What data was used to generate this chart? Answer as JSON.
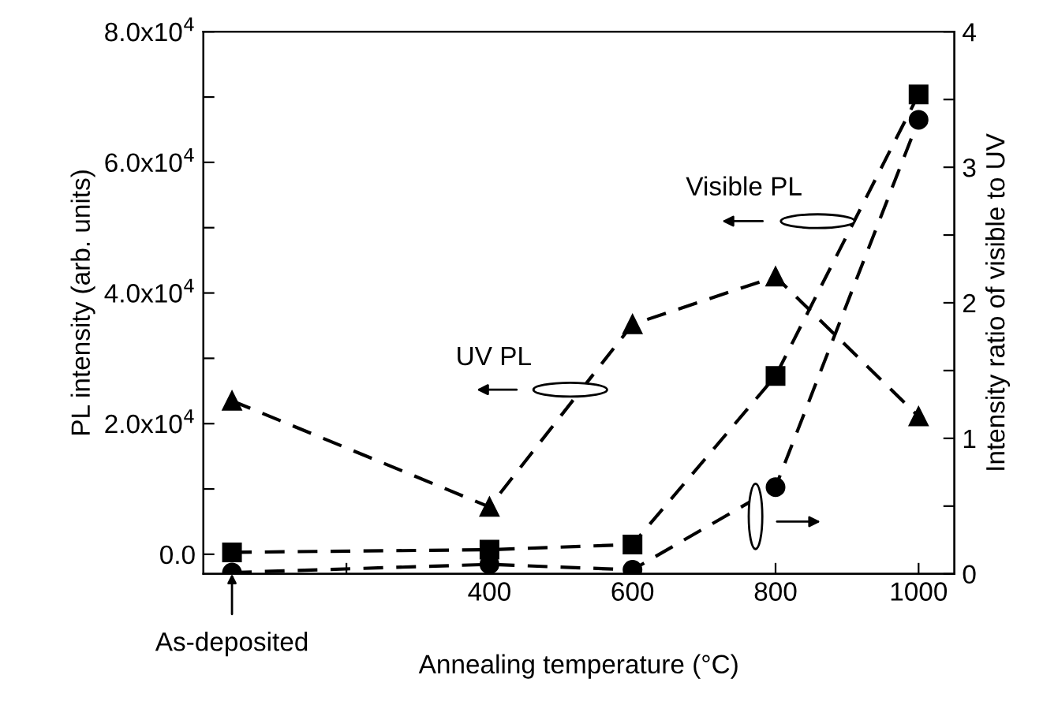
{
  "chart_data": {
    "type": "line",
    "xlabel": "Annealing temperature (°C)",
    "ylabel": "PL intensity (arb. units)",
    "y2label": "Intensity ratio of visible to UV",
    "xlim": [
      0,
      1050
    ],
    "xticks": [
      {
        "value": 200,
        "label": null
      },
      400,
      600,
      800,
      1000
    ],
    "ylim": [
      -3000,
      80000
    ],
    "yticks": [
      {
        "value": 0,
        "label": "0.0"
      },
      {
        "value": 10000,
        "label": null
      },
      {
        "value": 20000,
        "label": "2.0x10$^{4}$"
      },
      {
        "value": 30000,
        "label": null
      },
      {
        "value": 40000,
        "label": "4.0x10$^{4}$"
      },
      {
        "value": 50000,
        "label": null
      },
      {
        "value": 60000,
        "label": "6.0x10$^{4}$"
      },
      {
        "value": 70000,
        "label": null
      },
      {
        "value": 80000,
        "label": "8.0x10$^{4}$"
      }
    ],
    "y2lim": [
      0,
      4
    ],
    "y2ticks": [
      0,
      {
        "value": 0.5,
        "label": null
      },
      1,
      {
        "value": 1.5,
        "label": null
      },
      2,
      {
        "value": 2.5,
        "label": null
      },
      3,
      {
        "value": 3.5,
        "label": null
      },
      4
    ],
    "line_style": "dashed",
    "legend": false,
    "grid": false,
    "series": [
      {
        "name": "UV PL",
        "color": "#000000",
        "marker": "triangle",
        "x": [
          40,
          400,
          600,
          800,
          1000
        ],
        "values": [
          23500,
          7250,
          35200,
          42500,
          21100
        ]
      },
      {
        "name": "Visible PL",
        "color": "#000000",
        "marker": "square",
        "x": [
          40,
          400,
          600,
          800,
          1000
        ],
        "values": [
          300,
          700,
          1500,
          27300,
          70400
        ]
      },
      {
        "color": "#000000",
        "marker": "circle",
        "axis": "y2",
        "x": [
          40,
          400,
          600,
          800,
          1000
        ],
        "values": [
          0.01,
          0.07,
          0.03,
          0.64,
          3.35
        ]
      }
    ],
    "annotations": [
      {
        "text": "As-deposited",
        "x": 40,
        "y": -3000
      }
    ]
  }
}
